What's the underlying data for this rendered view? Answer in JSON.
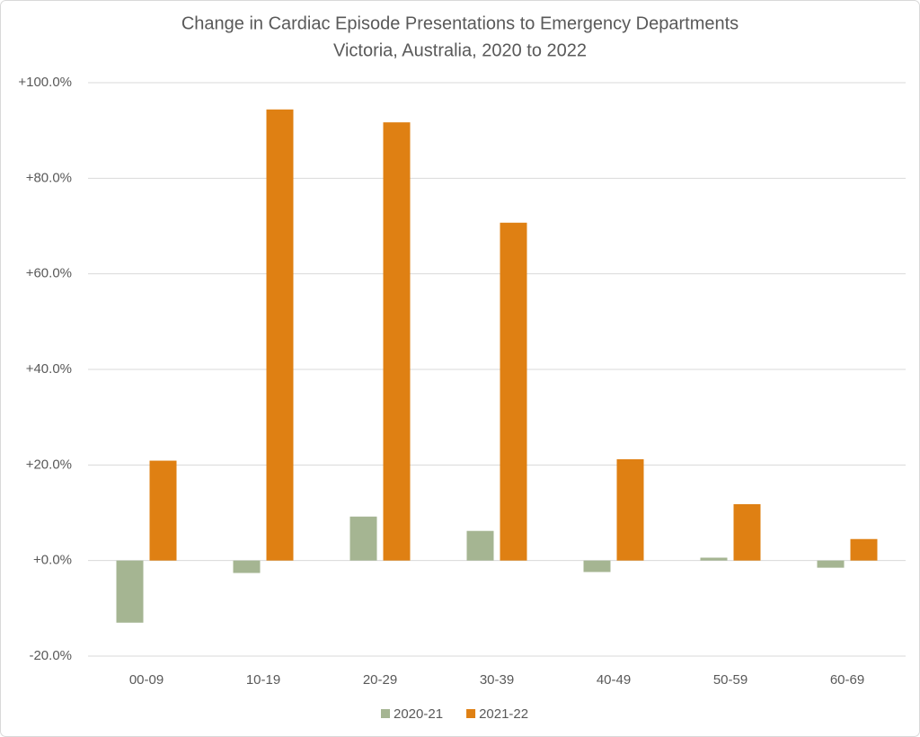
{
  "chart_data": {
    "type": "bar",
    "title": "Change in Cardiac Episode Presentations to Emergency Departments",
    "subtitle": "Victoria, Australia, 2020 to 2022",
    "categories": [
      "00-09",
      "10-19",
      "20-29",
      "30-39",
      "40-49",
      "50-59",
      "60-69"
    ],
    "series": [
      {
        "name": "2020-21",
        "color": "#a5b592",
        "values": [
          -13.0,
          -2.6,
          9.2,
          6.2,
          -2.4,
          0.6,
          -1.5
        ]
      },
      {
        "name": "2021-22",
        "color": "#df8013",
        "values": [
          20.9,
          94.4,
          91.7,
          70.7,
          21.2,
          11.8,
          4.5
        ]
      }
    ],
    "ylim": [
      -20,
      100
    ],
    "yticks": [
      {
        "value": -20,
        "label": "-20.0%"
      },
      {
        "value": 0,
        "label": "+0.0%"
      },
      {
        "value": 20,
        "label": "+20.0%"
      },
      {
        "value": 40,
        "label": "+40.0%"
      },
      {
        "value": 60,
        "label": "+60.0%"
      },
      {
        "value": 80,
        "label": "+80.0%"
      },
      {
        "value": 100,
        "label": "+100.0%"
      }
    ],
    "grid": true,
    "legend": "bottom"
  }
}
